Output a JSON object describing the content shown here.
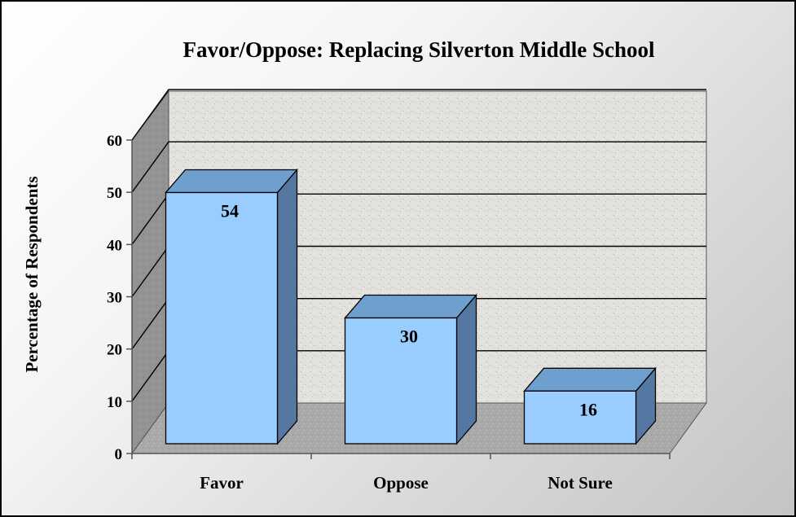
{
  "chart_data": {
    "type": "bar",
    "title": "Favor/Oppose: Replacing Silverton Middle School",
    "xlabel": "",
    "ylabel": "Percentage of Respondents",
    "categories": [
      "Favor",
      "Oppose",
      "Not Sure"
    ],
    "values": [
      54,
      30,
      16
    ],
    "data_labels": [
      "54",
      "30",
      "16"
    ],
    "ylim": [
      0,
      60
    ],
    "yticks": [
      0,
      10,
      20,
      30,
      40,
      50,
      60
    ],
    "grid": true,
    "legend": "none",
    "three_d": true,
    "colors": {
      "bar_front": "#99ccff",
      "bar_top": "#6f9fcf",
      "bar_side": "#5578a3",
      "back_wall": "#e2e0dc",
      "floor": "#a8a8a8",
      "side_wall": "#8f8f8f"
    }
  }
}
